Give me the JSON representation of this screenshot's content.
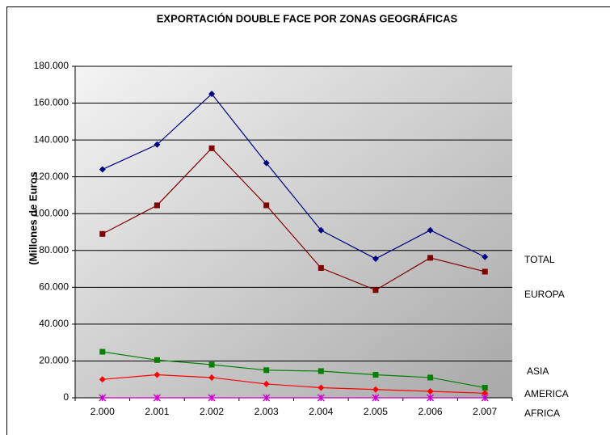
{
  "chart_data": {
    "type": "line",
    "title": "EXPORTACIÓN DOUBLE FACE POR ZONAS GEOGRÁFICAS",
    "y_label": "(Millones de Euros",
    "categories": [
      "2.000",
      "2.001",
      "2.002",
      "2.003",
      "2.004",
      "2.005",
      "2.006",
      "2.007"
    ],
    "series": [
      {
        "name": "TOTAL",
        "color": "#000080",
        "marker": "diamond",
        "values": [
          124000,
          137500,
          165000,
          127500,
          91000,
          75500,
          91000,
          76500
        ]
      },
      {
        "name": "EUROPA",
        "color": "#800000",
        "marker": "square",
        "values": [
          89000,
          104500,
          135500,
          104500,
          70500,
          58500,
          76000,
          68500
        ]
      },
      {
        "name": "ASIA",
        "color": "#008000",
        "marker": "square",
        "values": [
          25000,
          20500,
          18000,
          15000,
          14500,
          12500,
          11000,
          5500
        ]
      },
      {
        "name": "AMERICA",
        "color": "#ff0000",
        "marker": "diamond",
        "values": [
          10000,
          12500,
          11000,
          7500,
          5500,
          4500,
          3500,
          2500
        ]
      },
      {
        "name": "AFRICA",
        "color": "#cc00cc",
        "marker": "star",
        "values": [
          0,
          0,
          0,
          0,
          0,
          0,
          0,
          0
        ]
      }
    ],
    "ylim": [
      0,
      180000
    ],
    "yticks": [
      0,
      {
        "value": 20000,
        "label": "20.000"
      },
      {
        "value": 40000,
        "label": "40.000"
      },
      {
        "value": 60000,
        "label": "60.000"
      },
      {
        "value": 80000,
        "label": "80.000"
      },
      {
        "value": 100000,
        "label": "100.000"
      },
      {
        "value": 120000,
        "label": "120.000"
      },
      {
        "value": 140000,
        "label": "140.000"
      },
      {
        "value": 160000,
        "label": "160.000"
      },
      {
        "value": 180000,
        "label": "180.000"
      }
    ],
    "grid": true
  }
}
